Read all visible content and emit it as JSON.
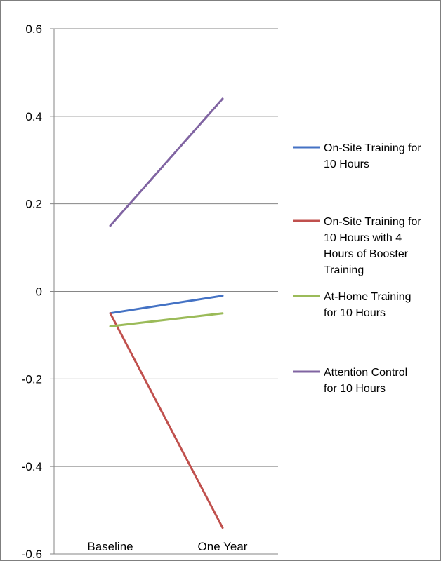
{
  "chart_data": {
    "type": "line",
    "categories": [
      "Baseline",
      "One Year"
    ],
    "ylim": [
      -0.6,
      0.6
    ],
    "yticks": [
      0.6,
      0.4,
      0.2,
      0,
      -0.2,
      -0.4,
      -0.6
    ],
    "ytick_labels": [
      "0.6",
      "0.4",
      "0.2",
      "0",
      "-0.2",
      "-0.4",
      "-0.6"
    ],
    "grid": true,
    "legend_position": "right",
    "title": "",
    "xlabel": "",
    "ylabel": "",
    "series": [
      {
        "name": "On-Site Training for 10 Hours",
        "legend_lines": [
          "On-Site Training for",
          "10 Hours"
        ],
        "values": [
          -0.05,
          -0.01
        ],
        "color": "#4472c4"
      },
      {
        "name": "On-Site Training for 10 Hours with 4 Hours of Booster Training",
        "legend_lines": [
          "On-Site Training for",
          "10 Hours with 4",
          "Hours of Booster",
          "Training"
        ],
        "values": [
          -0.05,
          -0.54
        ],
        "color": "#c0504d"
      },
      {
        "name": "At-Home Training for 10 Hours",
        "legend_lines": [
          "At-Home Training",
          "for 10 Hours"
        ],
        "values": [
          -0.08,
          -0.05
        ],
        "color": "#9bbb59"
      },
      {
        "name": "Attention Control for 10 Hours",
        "legend_lines": [
          "Attention Control",
          "for 10 Hours"
        ],
        "values": [
          0.15,
          0.44
        ],
        "color": "#8064a2"
      }
    ]
  }
}
